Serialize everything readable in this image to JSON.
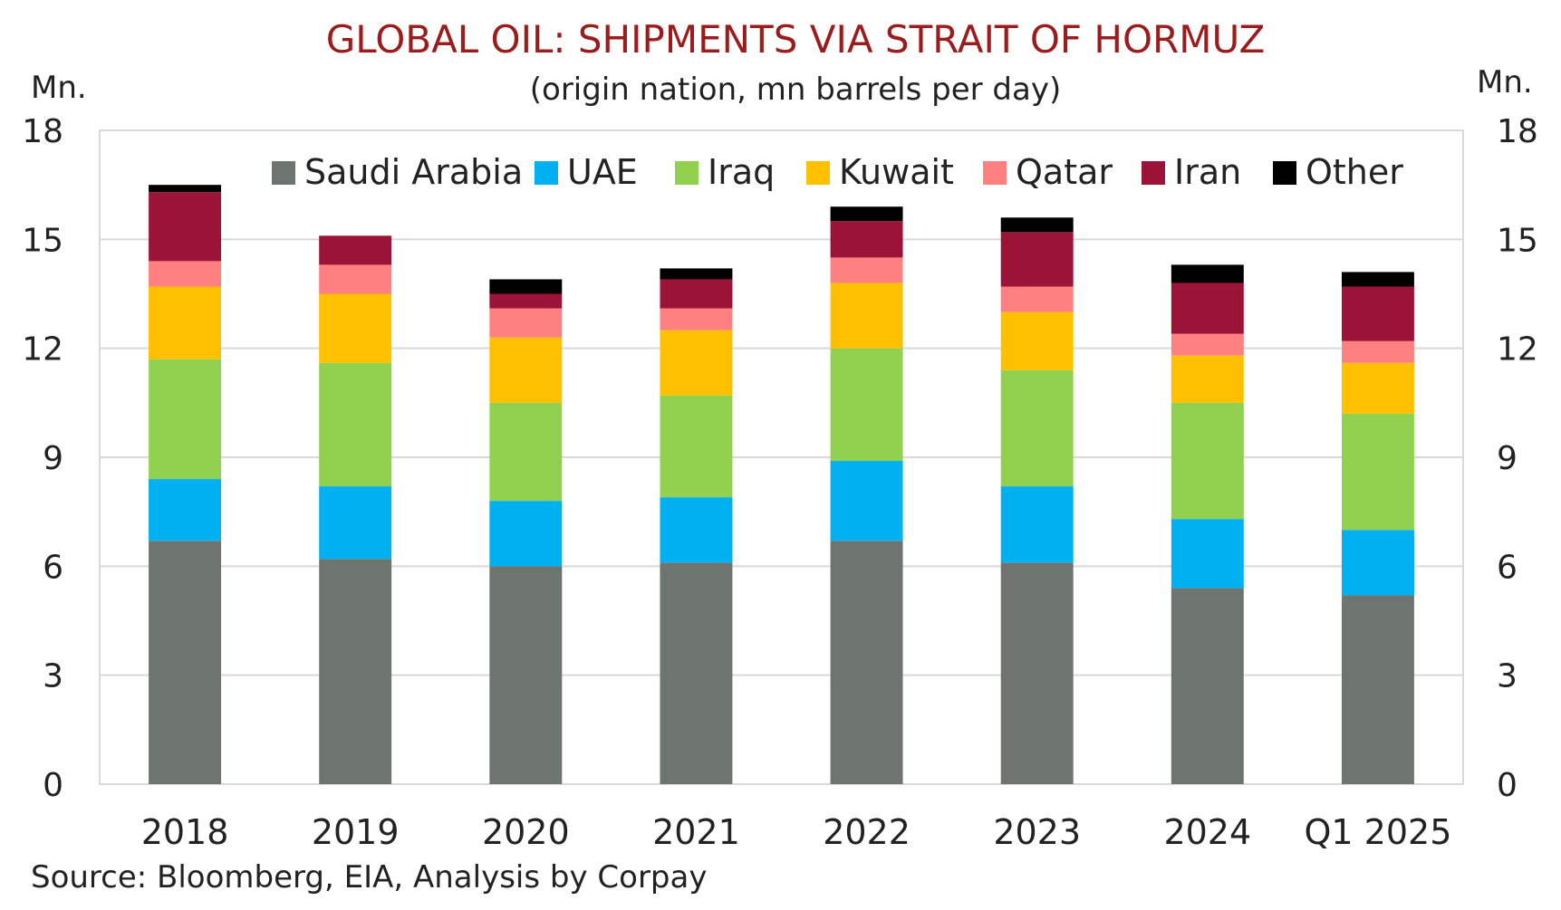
{
  "chart_data": {
    "type": "bar",
    "stacked": true,
    "title": "GLOBAL OIL: SHIPMENTS VIA STRAIT OF HORMUZ",
    "subtitle": "(origin nation, mn barrels per day)",
    "y_unit_left": "Mn.",
    "y_unit_right": "Mn.",
    "ylim": [
      0,
      18
    ],
    "yticks": [
      "0",
      "3",
      "6",
      "9",
      "12",
      "15",
      "18"
    ],
    "grid": true,
    "legend_position": "top",
    "categories": [
      "2018",
      "2019",
      "2020",
      "2021",
      "2022",
      "2023",
      "2024",
      "Q1 2025"
    ],
    "series": [
      {
        "name": "Saudi Arabia",
        "color": "#6e7570",
        "values": [
          6.7,
          6.2,
          6.0,
          6.1,
          6.7,
          6.1,
          5.4,
          5.2
        ]
      },
      {
        "name": "UAE",
        "color": "#00b0f0",
        "values": [
          1.7,
          2.0,
          1.8,
          1.8,
          2.2,
          2.1,
          1.9,
          1.8
        ]
      },
      {
        "name": "Iraq",
        "color": "#92d050",
        "values": [
          3.3,
          3.4,
          2.7,
          2.8,
          3.1,
          3.2,
          3.2,
          3.2
        ]
      },
      {
        "name": "Kuwait",
        "color": "#ffc000",
        "values": [
          2.0,
          1.9,
          1.8,
          1.8,
          1.8,
          1.6,
          1.3,
          1.4
        ]
      },
      {
        "name": "Qatar",
        "color": "#ff8080",
        "values": [
          0.7,
          0.8,
          0.8,
          0.6,
          0.7,
          0.7,
          0.6,
          0.6
        ]
      },
      {
        "name": "Iran",
        "color": "#9b1438",
        "values": [
          1.9,
          0.8,
          0.4,
          0.8,
          1.0,
          1.5,
          1.4,
          1.5
        ]
      },
      {
        "name": "Other",
        "color": "#000000",
        "values": [
          0.2,
          0.0,
          0.4,
          0.3,
          0.4,
          0.4,
          0.5,
          0.4
        ]
      }
    ]
  },
  "source": "Source: Bloomberg, EIA, Analysis by Corpay"
}
